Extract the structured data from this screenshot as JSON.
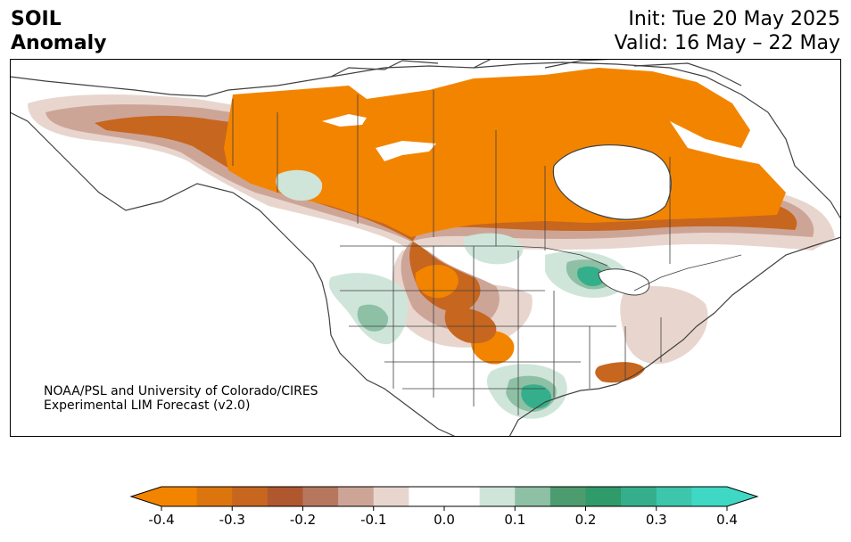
{
  "header": {
    "title_line1": "SOIL",
    "title_line2": "Anomaly",
    "init_text": "Init: Tue 20 May 2025",
    "valid_text": "Valid: 16 May – 22 May"
  },
  "credit": {
    "line1": "NOAA/PSL and University of Colorado/CIRES",
    "line2": "Experimental LIM Forecast (v2.0)"
  },
  "colorbar": {
    "bins": [
      "#f38400",
      "#dd750e",
      "#c7661f",
      "#af582f",
      "#b7775f",
      "#cda597",
      "#e8d6ce",
      "#ffffff",
      "#ffffff",
      "#cfe5da",
      "#8dc0a5",
      "#4d9c6f",
      "#2f9a6a",
      "#35af8b",
      "#3cc6ab",
      "#3ed8c5"
    ],
    "under_color": "#f38400",
    "over_color": "#3ed8c5",
    "ticks": [
      "-0.4",
      "-0.3",
      "-0.2",
      "-0.1",
      "0.0",
      "0.1",
      "0.2",
      "0.3",
      "0.4"
    ]
  },
  "map": {
    "land_color": "#ffffff",
    "border_color": "#404040",
    "frame_color": "#000000",
    "palette": {
      "dry_strong": "#f38400",
      "dry_mid": "#c7661f",
      "dry_light": "#cda597",
      "dry_faint": "#e8d6ce",
      "wet_faint": "#cfe5da",
      "wet_mid": "#8dc0a5",
      "wet_strong": "#35af8b"
    }
  }
}
